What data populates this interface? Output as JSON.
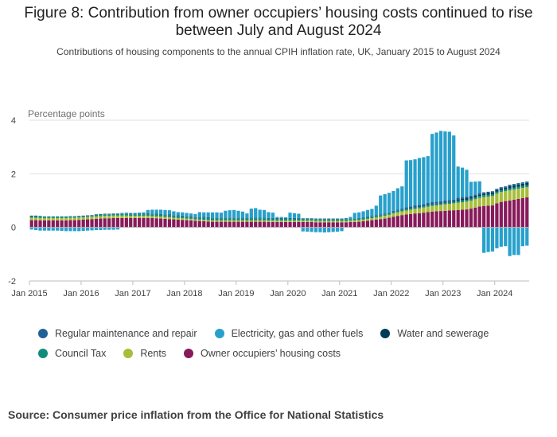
{
  "title": "Figure 8: Contribution from owner occupiers’ housing costs continued to rise between July and August 2024",
  "subtitle": "Contributions of housing components to the annual CPIH inflation rate, UK, January 2015 to August 2024",
  "source": "Source: Consumer price inflation from the Office for National Statistics",
  "chart_data": {
    "type": "bar",
    "stacked": true,
    "ylabel": "Percentage points",
    "ylim": [
      -2,
      4
    ],
    "yticks": [
      4,
      2,
      0,
      -2
    ],
    "x_ticks": [
      "Jan 2015",
      "Jan 2016",
      "Jan 2017",
      "Jan 2018",
      "Jan 2019",
      "Jan 2020",
      "Jan 2021",
      "Jan 2022",
      "Jan 2023",
      "Jan 2024"
    ],
    "categories_note": "Monthly, January 2015 to August 2024",
    "legend_position": "bottom",
    "series": [
      {
        "name": "Regular maintenance and repair",
        "color": "#206095"
      },
      {
        "name": "Electricity, gas and other fuels",
        "color": "#27a0cc"
      },
      {
        "name": "Water and sewerage",
        "color": "#003c57"
      },
      {
        "name": "Council Tax",
        "color": "#118c7b"
      },
      {
        "name": "Rents",
        "color": "#a8bd3a"
      },
      {
        "name": "Owner occupiers’ housing costs",
        "color": "#871a5b"
      }
    ],
    "monthly": {
      "owner_occupiers": {
        "2015": [
          0.27,
          0.27,
          0.26,
          0.26,
          0.26,
          0.26,
          0.26,
          0.26,
          0.26,
          0.27,
          0.27,
          0.28
        ],
        "2016": [
          0.29,
          0.3,
          0.31,
          0.32,
          0.33,
          0.34,
          0.34,
          0.35,
          0.35,
          0.35,
          0.35,
          0.35
        ],
        "2017": [
          0.35,
          0.35,
          0.35,
          0.35,
          0.35,
          0.34,
          0.33,
          0.32,
          0.31,
          0.3,
          0.29,
          0.28
        ],
        "2018": [
          0.27,
          0.26,
          0.25,
          0.24,
          0.23,
          0.22,
          0.21,
          0.21,
          0.21,
          0.21,
          0.21,
          0.21
        ],
        "2019": [
          0.21,
          0.21,
          0.21,
          0.21,
          0.21,
          0.21,
          0.21,
          0.2,
          0.2,
          0.2,
          0.2,
          0.2
        ],
        "2020": [
          0.2,
          0.2,
          0.2,
          0.2,
          0.2,
          0.2,
          0.19,
          0.19,
          0.19,
          0.19,
          0.19,
          0.19
        ],
        "2021": [
          0.19,
          0.19,
          0.2,
          0.2,
          0.21,
          0.23,
          0.25,
          0.27,
          0.29,
          0.31,
          0.33,
          0.36
        ],
        "2022": [
          0.4,
          0.43,
          0.46,
          0.48,
          0.5,
          0.52,
          0.53,
          0.55,
          0.57,
          0.59,
          0.6,
          0.61
        ],
        "2023": [
          0.62,
          0.63,
          0.64,
          0.65,
          0.66,
          0.67,
          0.7,
          0.74,
          0.78,
          0.8,
          0.81,
          0.82
        ],
        "2024": [
          0.9,
          0.95,
          0.98,
          1.0,
          1.03,
          1.06,
          1.09,
          1.12
        ]
      },
      "rents": {
        "2015": [
          0.09,
          0.09,
          0.09,
          0.09,
          0.09,
          0.09,
          0.09,
          0.09,
          0.09,
          0.09,
          0.09,
          0.09
        ],
        "2016": [
          0.09,
          0.09,
          0.09,
          0.09,
          0.09,
          0.09,
          0.09,
          0.09,
          0.09,
          0.09,
          0.09,
          0.08
        ],
        "2017": [
          0.08,
          0.08,
          0.08,
          0.08,
          0.07,
          0.07,
          0.07,
          0.07,
          0.07,
          0.06,
          0.06,
          0.06
        ],
        "2018": [
          0.06,
          0.06,
          0.05,
          0.05,
          0.05,
          0.05,
          0.05,
          0.05,
          0.05,
          0.05,
          0.05,
          0.05
        ],
        "2019": [
          0.05,
          0.05,
          0.05,
          0.05,
          0.05,
          0.05,
          0.05,
          0.05,
          0.05,
          0.05,
          0.05,
          0.05
        ],
        "2020": [
          0.05,
          0.05,
          0.05,
          0.05,
          0.05,
          0.05,
          0.05,
          0.05,
          0.05,
          0.05,
          0.05,
          0.05
        ],
        "2021": [
          0.05,
          0.05,
          0.05,
          0.06,
          0.06,
          0.06,
          0.07,
          0.07,
          0.08,
          0.09,
          0.1,
          0.11
        ],
        "2022": [
          0.12,
          0.13,
          0.14,
          0.15,
          0.16,
          0.17,
          0.18,
          0.19,
          0.2,
          0.21,
          0.22,
          0.23
        ],
        "2023": [
          0.24,
          0.25,
          0.26,
          0.27,
          0.28,
          0.29,
          0.3,
          0.31,
          0.32,
          0.33,
          0.34,
          0.35
        ],
        "2024": [
          0.36,
          0.37,
          0.37,
          0.38,
          0.38,
          0.38,
          0.38,
          0.38
        ]
      },
      "council_tax": {
        "2015": [
          0.05,
          0.05,
          0.05,
          0.04,
          0.04,
          0.04,
          0.04,
          0.04,
          0.04,
          0.04,
          0.04,
          0.04
        ],
        "2016": [
          0.04,
          0.04,
          0.04,
          0.06,
          0.06,
          0.06,
          0.06,
          0.06,
          0.06,
          0.06,
          0.06,
          0.06
        ],
        "2017": [
          0.06,
          0.06,
          0.06,
          0.07,
          0.07,
          0.07,
          0.07,
          0.07,
          0.07,
          0.07,
          0.07,
          0.07
        ],
        "2018": [
          0.07,
          0.07,
          0.07,
          0.08,
          0.08,
          0.08,
          0.08,
          0.08,
          0.08,
          0.08,
          0.08,
          0.08
        ],
        "2019": [
          0.08,
          0.08,
          0.08,
          0.07,
          0.07,
          0.07,
          0.07,
          0.07,
          0.07,
          0.07,
          0.07,
          0.07
        ],
        "2020": [
          0.07,
          0.07,
          0.07,
          0.06,
          0.06,
          0.06,
          0.06,
          0.06,
          0.06,
          0.06,
          0.06,
          0.06
        ],
        "2021": [
          0.06,
          0.06,
          0.06,
          0.06,
          0.06,
          0.06,
          0.06,
          0.06,
          0.06,
          0.06,
          0.06,
          0.06
        ],
        "2022": [
          0.06,
          0.06,
          0.06,
          0.05,
          0.05,
          0.05,
          0.05,
          0.05,
          0.05,
          0.05,
          0.05,
          0.05
        ],
        "2023": [
          0.05,
          0.05,
          0.05,
          0.07,
          0.07,
          0.07,
          0.07,
          0.07,
          0.07,
          0.07,
          0.07,
          0.07
        ],
        "2024": [
          0.07,
          0.07,
          0.07,
          0.08,
          0.08,
          0.08,
          0.08,
          0.08
        ]
      },
      "water_sewerage": {
        "2015": [
          0.01,
          0.01,
          0.01,
          0.0,
          0.0,
          0.0,
          0.0,
          0.0,
          0.0,
          0.0,
          0.0,
          0.0
        ],
        "2016": [
          0.0,
          0.0,
          0.0,
          0.0,
          0.0,
          0.0,
          0.0,
          0.0,
          0.0,
          0.0,
          0.0,
          0.0
        ],
        "2017": [
          0.0,
          0.0,
          0.0,
          0.01,
          0.01,
          0.01,
          0.01,
          0.01,
          0.01,
          0.01,
          0.01,
          0.01
        ],
        "2018": [
          0.01,
          0.01,
          0.01,
          0.01,
          0.01,
          0.01,
          0.01,
          0.01,
          0.01,
          0.01,
          0.01,
          0.01
        ],
        "2019": [
          0.01,
          0.01,
          0.01,
          0.01,
          0.01,
          0.01,
          0.01,
          0.01,
          0.01,
          0.01,
          0.01,
          0.01
        ],
        "2020": [
          0.01,
          0.01,
          0.01,
          0.01,
          0.01,
          0.01,
          0.01,
          0.01,
          0.01,
          0.01,
          0.01,
          0.01
        ],
        "2021": [
          0.01,
          0.01,
          0.01,
          0.0,
          0.0,
          0.0,
          0.0,
          0.0,
          0.0,
          0.0,
          0.0,
          0.0
        ],
        "2022": [
          0.0,
          0.0,
          0.0,
          0.02,
          0.02,
          0.02,
          0.02,
          0.02,
          0.02,
          0.02,
          0.02,
          0.02
        ],
        "2023": [
          0.02,
          0.02,
          0.02,
          0.06,
          0.06,
          0.06,
          0.06,
          0.06,
          0.06,
          0.06,
          0.06,
          0.06
        ],
        "2024": [
          0.06,
          0.06,
          0.06,
          0.08,
          0.08,
          0.08,
          0.08,
          0.08
        ]
      },
      "maintenance_repair": {
        "2015": [
          0.02,
          0.02,
          0.02,
          0.02,
          0.02,
          0.02,
          0.02,
          0.02,
          0.02,
          0.02,
          0.02,
          0.02
        ],
        "2016": [
          0.02,
          0.02,
          0.02,
          0.02,
          0.02,
          0.02,
          0.02,
          0.02,
          0.02,
          0.02,
          0.02,
          0.02
        ],
        "2017": [
          0.02,
          0.02,
          0.02,
          0.02,
          0.02,
          0.02,
          0.02,
          0.02,
          0.02,
          0.02,
          0.02,
          0.02
        ],
        "2018": [
          0.02,
          0.02,
          0.02,
          0.02,
          0.02,
          0.02,
          0.02,
          0.02,
          0.02,
          0.02,
          0.02,
          0.02
        ],
        "2019": [
          0.02,
          0.02,
          0.02,
          0.02,
          0.02,
          0.02,
          0.02,
          0.02,
          0.02,
          0.02,
          0.02,
          0.02
        ],
        "2020": [
          0.02,
          0.02,
          0.02,
          0.02,
          0.02,
          0.02,
          0.02,
          0.02,
          0.02,
          0.02,
          0.02,
          0.02
        ],
        "2021": [
          0.02,
          0.02,
          0.02,
          0.02,
          0.02,
          0.03,
          0.03,
          0.03,
          0.03,
          0.03,
          0.03,
          0.03
        ],
        "2022": [
          0.04,
          0.04,
          0.05,
          0.05,
          0.05,
          0.06,
          0.06,
          0.06,
          0.07,
          0.07,
          0.07,
          0.07
        ],
        "2023": [
          0.07,
          0.07,
          0.06,
          0.06,
          0.06,
          0.06,
          0.05,
          0.05,
          0.05,
          0.05,
          0.05,
          0.05
        ],
        "2024": [
          0.05,
          0.05,
          0.05,
          0.05,
          0.05,
          0.05,
          0.05,
          0.05
        ]
      },
      "electricity_gas_fuels": {
        "2015": [
          -0.08,
          -0.1,
          -0.12,
          -0.12,
          -0.12,
          -0.12,
          -0.12,
          -0.13,
          -0.14,
          -0.14,
          -0.14,
          -0.14
        ],
        "2016": [
          -0.13,
          -0.12,
          -0.11,
          -0.1,
          -0.1,
          -0.09,
          -0.09,
          -0.09,
          -0.08,
          0.02,
          0.03,
          0.03
        ],
        "2017": [
          0.03,
          0.04,
          0.05,
          0.12,
          0.14,
          0.15,
          0.16,
          0.16,
          0.16,
          0.14,
          0.12,
          0.12
        ],
        "2018": [
          0.11,
          0.1,
          0.1,
          0.17,
          0.17,
          0.18,
          0.19,
          0.19,
          0.18,
          0.25,
          0.27,
          0.28
        ],
        "2019": [
          0.25,
          0.22,
          0.15,
          0.34,
          0.36,
          0.3,
          0.29,
          0.22,
          0.2,
          0.04,
          0.04,
          0.03
        ],
        "2020": [
          0.2,
          0.18,
          0.16,
          -0.15,
          -0.16,
          -0.17,
          -0.18,
          -0.18,
          -0.19,
          -0.18,
          -0.17,
          -0.16
        ],
        "2021": [
          -0.14,
          0.02,
          0.05,
          0.2,
          0.21,
          0.22,
          0.24,
          0.26,
          0.35,
          0.7,
          0.72,
          0.73
        ],
        "2022": [
          0.74,
          0.8,
          0.82,
          1.75,
          1.73,
          1.72,
          1.75,
          1.75,
          1.75,
          2.55,
          2.58,
          2.62
        ],
        "2023": [
          2.58,
          2.55,
          2.4,
          1.16,
          1.1,
          1.0,
          0.52,
          0.48,
          0.44,
          -0.95,
          -0.92,
          -0.9
        ],
        "2024": [
          -0.78,
          -0.72,
          -0.7,
          -1.07,
          -1.03,
          -1.03,
          -0.7,
          -0.68
        ]
      }
    }
  }
}
